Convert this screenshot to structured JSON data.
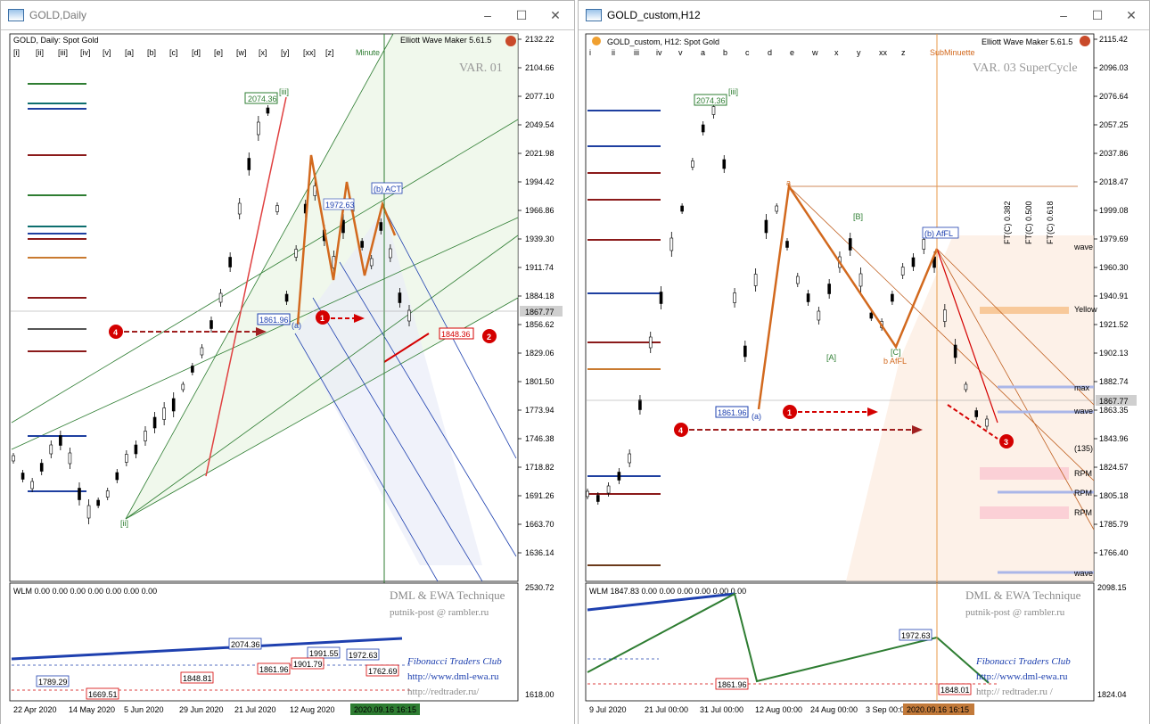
{
  "left": {
    "window_title": "GOLD,Daily",
    "symbol_info": "GOLD, Daily:  Spot Gold",
    "indicator_name": "Elliott Wave Maker 5.61.5",
    "variant": "VAR. 01",
    "wave_degree_label": "Minute",
    "wave_buttons": [
      "[i]",
      "[ii]",
      "[iii]",
      "[iv]",
      "[v]",
      "[a]",
      "[b]",
      "[c]",
      "[d]",
      "[e]",
      "[w]",
      "[x]",
      "[y]",
      "[xx]",
      "[z]"
    ],
    "price_ticks": [
      "2132.22",
      "2104.66",
      "2077.10",
      "2049.54",
      "2021.98",
      "1994.42",
      "1966.86",
      "1939.30",
      "1911.74",
      "1884.18",
      "1856.62",
      "1829.06",
      "1801.50",
      "1773.94",
      "1746.38",
      "1718.82",
      "1691.26",
      "1663.70",
      "1636.14"
    ],
    "current_price": "1867.77",
    "date_ticks": [
      "22 Apr 2020",
      "14 May 2020",
      "5 Jun 2020",
      "29 Jun 2020",
      "21 Jul 2020",
      "12 Aug 2020"
    ],
    "cursor_date": "2020.09.16 16:15",
    "wave_labels": {
      "iii": "[iii]",
      "ii": "[ii]",
      "b": "(b) ACT",
      "a": "(a)",
      "y": "y"
    },
    "price_boxes": {
      "top": "2074.36",
      "mid": "1972.63",
      "a": "1861.96",
      "target": "1848.36"
    },
    "markers": {
      "m1": "1",
      "m2": "2",
      "m4": "4"
    },
    "sub": {
      "header": "WLM 0.00 0.00 0.00 0.00 0.00 0.00 0.00",
      "scale_top": "2530.72",
      "scale_bottom": "1618.00",
      "boxes": [
        "2074.36",
        "1991.55",
        "1972.63",
        "1861.96",
        "1901.79",
        "1848.81",
        "1789.29",
        "1762.69",
        "1669.51"
      ],
      "credit1": "DML & EWA Technique",
      "credit2": "putnik-post @ rambler.ru",
      "credit3": "Fibonacci   Traders   Club",
      "credit4": "http://www.dml-ewa.ru",
      "credit5": "http://redtrader.ru/"
    }
  },
  "right": {
    "window_title": "GOLD_custom,H12",
    "symbol_info": "GOLD_custom, H12:  Spot Gold",
    "indicator_name": "Elliott Wave Maker 5.61.5",
    "variant": "VAR. 03 SuperCycle",
    "wave_degree_label": "SubMinuette",
    "wave_buttons": [
      "i",
      "ii",
      "iii",
      "iv",
      "v",
      "a",
      "b",
      "c",
      "d",
      "e",
      "w",
      "x",
      "y",
      "xx",
      "z"
    ],
    "price_ticks": [
      "2115.42",
      "2096.03",
      "2076.64",
      "2057.25",
      "2037.86",
      "2018.47",
      "1999.08",
      "1979.69",
      "1960.30",
      "1940.91",
      "1921.52",
      "1902.13",
      "1882.74",
      "1863.35",
      "1843.96",
      "1824.57",
      "1805.18",
      "1785.79",
      "1766.40"
    ],
    "current_price": "1867.77",
    "date_ticks": [
      "9 Jul 2020",
      "21 Jul 00:00",
      "31 Jul 00:00",
      "12 Aug 00:00",
      "24 Aug 00:00",
      "3 Sep 00:00"
    ],
    "cursor_date": "2020.09.16 16:15",
    "wave_labels": {
      "iii": "[iii]",
      "b": "(b) AfFL",
      "bb": "b AfFL",
      "B": "[B]",
      "A": "[A]",
      "C": "[C]",
      "a": "(a)",
      "a_small": "a"
    },
    "fib_labels": [
      "FT(C) 0.382",
      "FT(C) 0.500",
      "FT(C) 0.618"
    ],
    "right_tags": [
      "wave",
      "Yellow",
      "max",
      "wave",
      "(135)",
      "RPM",
      "RPM",
      "RPM",
      "wave"
    ],
    "price_boxes": {
      "top": "2074.36",
      "a": "1861.96"
    },
    "markers": {
      "m1": "1",
      "m3": "3",
      "m4": "4"
    },
    "sub": {
      "header": "WLM 1847.83 0.00 0.00 0.00 0.00 0.00 0.00",
      "scale_top": "2098.15",
      "scale_bottom": "1824.04",
      "boxes": [
        "1972.63",
        "1861.96",
        "1848.01"
      ],
      "credit1": "DML & EWA Technique",
      "credit2": "putnik-post @ rambler.ru",
      "credit3": "Fibonacci   Traders   Club",
      "credit4": "http://www.dml-ewa.ru",
      "credit5": "http:// redtrader.ru /"
    }
  },
  "colors": {
    "bull": "#000000",
    "wave": "#d2691e",
    "fan": "#2e7d32",
    "channel": "#1e40af",
    "alert": "#d40000",
    "target": "#c00000"
  }
}
